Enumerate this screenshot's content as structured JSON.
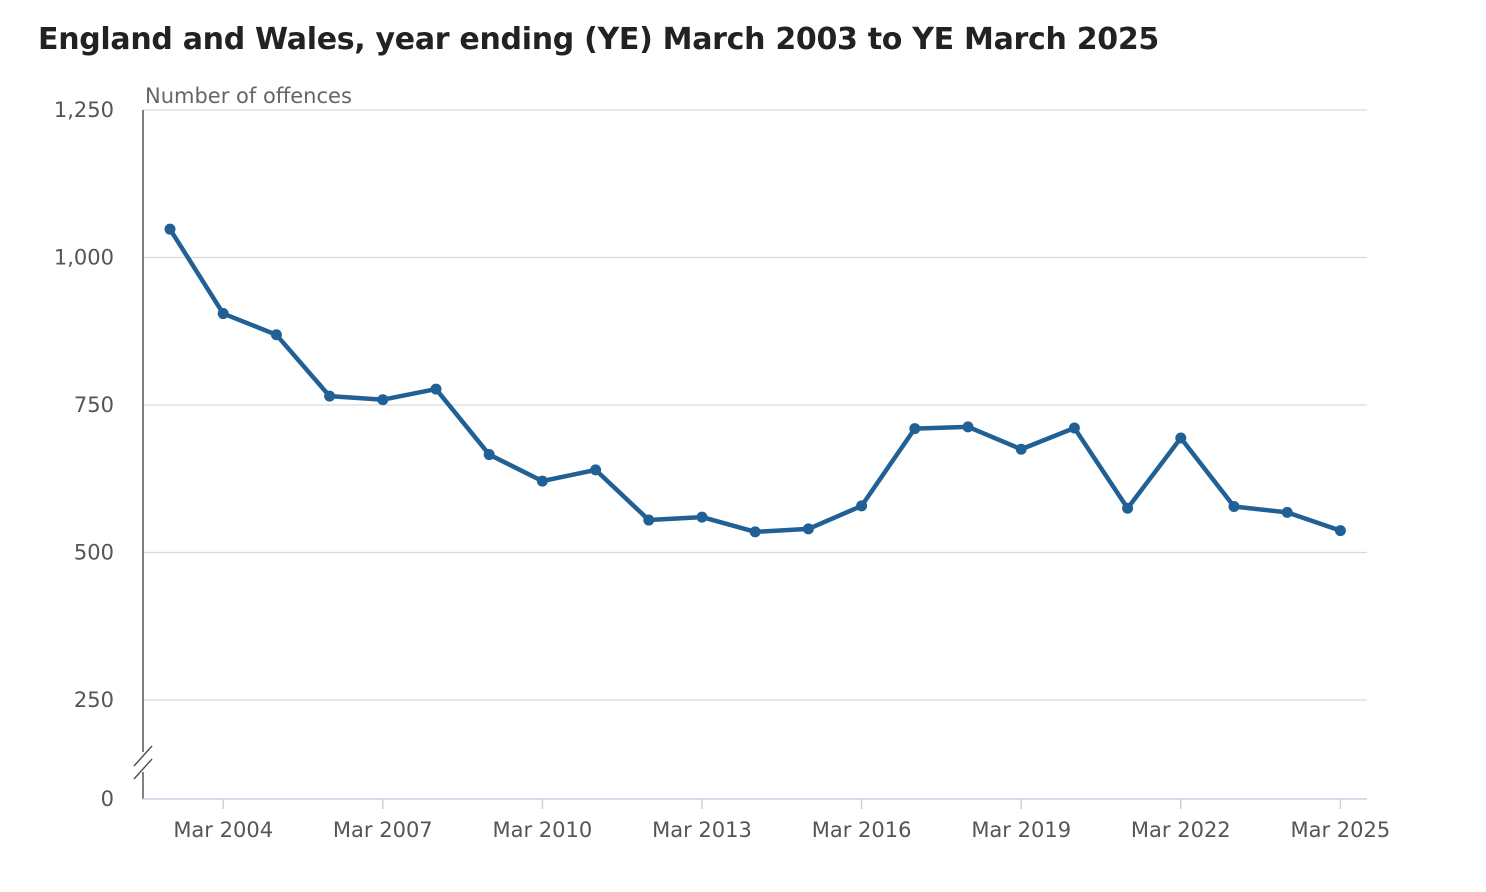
{
  "chart_data": {
    "type": "line",
    "title": "England and Wales, year ending (YE) March 2003 to YE March 2025",
    "ylabel": "Number of offences",
    "xlabel": "",
    "ylim": [
      0,
      1250
    ],
    "y_ticks": [
      0,
      250,
      500,
      750,
      1000,
      1250
    ],
    "y_tick_labels": [
      "0",
      "250",
      "500",
      "750",
      "1,000",
      "1,250"
    ],
    "y_axis_break": true,
    "x_tick_labels": [
      "Mar 2004",
      "Mar 2007",
      "Mar 2010",
      "Mar 2013",
      "Mar 2016",
      "Mar 2019",
      "Mar 2022",
      "Mar 2025"
    ],
    "x_tick_indices": [
      1,
      4,
      7,
      10,
      13,
      16,
      19,
      22
    ],
    "categories": [
      "Mar 2003",
      "Mar 2004",
      "Mar 2005",
      "Mar 2006",
      "Mar 2007",
      "Mar 2008",
      "Mar 2009",
      "Mar 2010",
      "Mar 2011",
      "Mar 2012",
      "Mar 2013",
      "Mar 2014",
      "Mar 2015",
      "Mar 2016",
      "Mar 2017",
      "Mar 2018",
      "Mar 2019",
      "Mar 2020",
      "Mar 2021",
      "Mar 2022",
      "Mar 2023",
      "Mar 2024",
      "Mar 2025"
    ],
    "series": [
      {
        "color": "#206095",
        "values": [
          1048,
          905,
          869,
          765,
          759,
          777,
          666,
          621,
          640,
          555,
          560,
          535,
          540,
          579,
          710,
          713,
          675,
          711,
          575,
          694,
          578,
          568,
          537
        ]
      }
    ],
    "grid": true,
    "legend": "none"
  }
}
